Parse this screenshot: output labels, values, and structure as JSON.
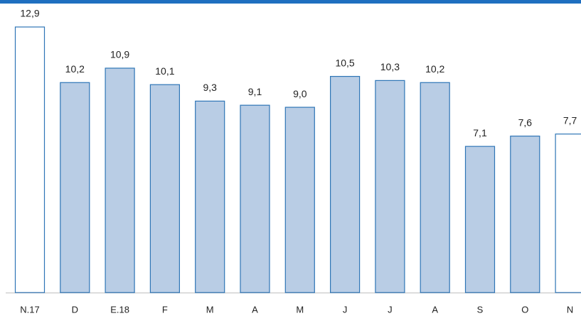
{
  "chart_data": {
    "type": "bar",
    "categories": [
      "N.17",
      "D",
      "E.18",
      "F",
      "M",
      "A",
      "M",
      "J",
      "J",
      "A",
      "S",
      "O",
      "N"
    ],
    "values": [
      12.9,
      10.2,
      10.9,
      10.1,
      9.3,
      9.1,
      9.0,
      10.5,
      10.3,
      10.2,
      7.1,
      7.6,
      7.7
    ],
    "value_labels": [
      "12,9",
      "10,2",
      "10,9",
      "10,1",
      "9,3",
      "9,1",
      "9,0",
      "10,5",
      "10,3",
      "10,2",
      "7,1",
      "7,6",
      "7,7"
    ],
    "colors": [
      "#ffffff",
      "#b9cde5",
      "#b9cde5",
      "#b9cde5",
      "#b9cde5",
      "#b9cde5",
      "#b9cde5",
      "#b9cde5",
      "#b9cde5",
      "#b9cde5",
      "#b9cde5",
      "#b9cde5",
      "#ffffff"
    ],
    "edge_color": "#2e75b6"
  }
}
